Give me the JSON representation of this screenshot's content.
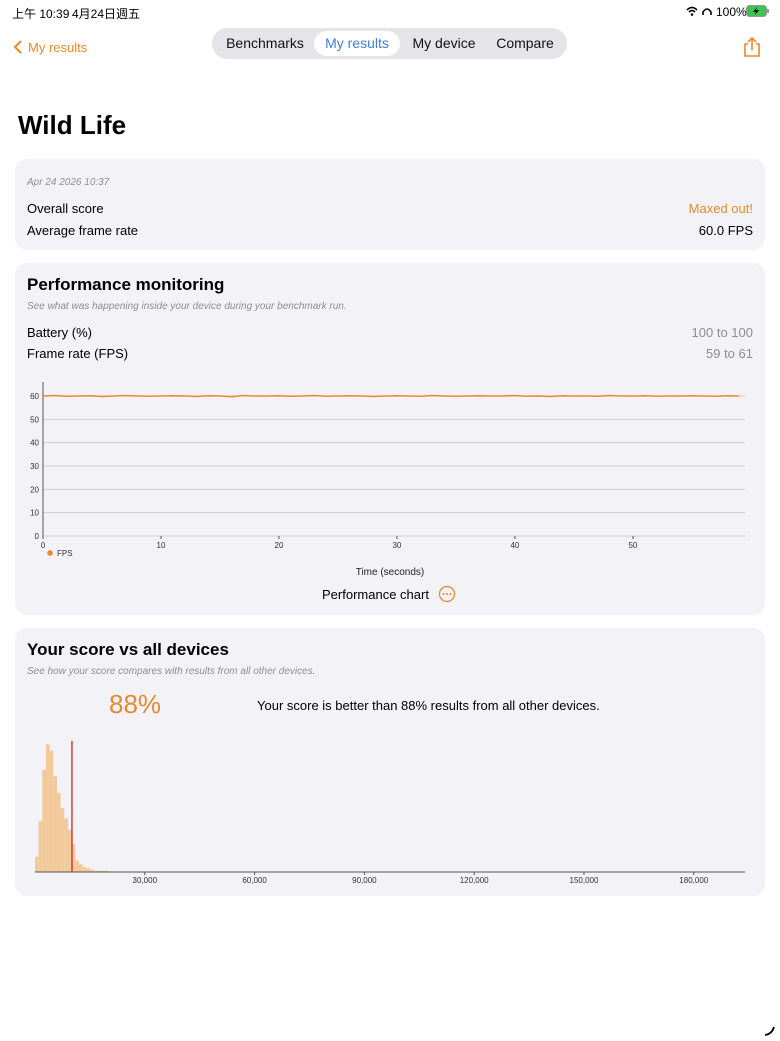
{
  "status_bar": {
    "time": "上午 10:39",
    "date": "4月24日週五",
    "battery": "100%"
  },
  "nav": {
    "back": "My results",
    "tabs": [
      "Benchmarks",
      "My results",
      "My device",
      "Compare"
    ],
    "active_tab": 1
  },
  "title": "Wild Life",
  "summary": {
    "date": "Apr 24 2026 10:37",
    "rows": [
      [
        "Overall score",
        "Maxed out!"
      ],
      [
        "Average frame rate",
        "60.0 FPS"
      ]
    ]
  },
  "performance": {
    "title": "Performance monitoring",
    "subtitle": "See what was happening inside your device during your benchmark run.",
    "rows": [
      [
        "Battery (%)",
        "100 to 100"
      ],
      [
        "Frame rate (FPS)",
        "59 to 61"
      ]
    ],
    "chart": {
      "type": "line",
      "x_label": "Time (seconds)",
      "x": [
        0,
        1,
        2,
        3,
        4,
        5,
        6,
        7,
        8,
        9,
        10,
        11,
        12,
        13,
        14,
        15,
        16,
        17,
        18,
        19,
        20,
        21,
        22,
        23,
        24,
        25,
        26,
        27,
        28,
        29,
        30,
        31,
        32,
        33,
        34,
        35,
        36,
        37,
        38,
        39,
        40,
        41,
        42,
        43,
        44,
        45,
        46,
        47,
        48,
        49,
        50,
        51,
        52,
        53,
        54,
        55,
        56,
        57,
        58,
        59
      ],
      "series": [
        {
          "name": "FPS",
          "color": "#e8892b",
          "values": [
            60,
            60.2,
            59.9,
            60,
            60.1,
            59.8,
            60,
            60.2,
            60,
            59.9,
            60,
            60.1,
            60,
            59.8,
            60.1,
            60,
            59.7,
            60.2,
            60,
            60,
            60.1,
            59.9,
            60,
            60.2,
            59.9,
            60,
            60.1,
            60,
            59.8,
            60,
            60.1,
            60,
            59.9,
            60.2,
            60,
            59.9,
            60,
            60.1,
            60,
            60,
            60.2,
            59.9,
            60,
            59.8,
            60.1,
            60,
            60,
            59.9,
            60.2,
            60,
            60,
            60.1,
            59.9,
            60,
            60,
            60.1,
            60,
            59.9,
            60.1,
            60
          ]
        }
      ],
      "xlim": [
        0,
        59.5
      ],
      "xticks": [
        0,
        10,
        20,
        30,
        40,
        50
      ],
      "ylim": [
        0,
        66
      ],
      "yticks": [
        0,
        10,
        20,
        30,
        40,
        50,
        60
      ],
      "grid": true
    },
    "footer": "Performance chart"
  },
  "comparison": {
    "title": "Your score vs all devices",
    "subtitle": "See how your score compares with results from all other devices.",
    "percent": "88%",
    "text": "Your score is better than 88% results from all other devices.",
    "chart": {
      "type": "histogram",
      "color": "#f2c999",
      "marker_color": "#e0393b",
      "bins": [
        0,
        1000,
        2000,
        3000,
        4000,
        5000,
        6000,
        7000,
        8000,
        9000,
        10000,
        11000,
        12000,
        13000,
        14000,
        15000,
        16000,
        17000,
        18000,
        19000,
        20000
      ],
      "counts": [
        12,
        40,
        80,
        100,
        95,
        75,
        62,
        50,
        42,
        33,
        22,
        9,
        6,
        4,
        3,
        2,
        1,
        1,
        1,
        1
      ],
      "score_marker": 10100,
      "xlim": [
        0,
        194000
      ],
      "ylim": [
        0,
        105
      ],
      "xticks": [
        {
          "value": 30000,
          "label": "30,000"
        },
        {
          "value": 60000,
          "label": "60,000"
        },
        {
          "value": 90000,
          "label": "90,000"
        },
        {
          "value": 120000,
          "label": "120,000"
        },
        {
          "value": 150000,
          "label": "150,000"
        },
        {
          "value": 180000,
          "label": "180,000"
        }
      ]
    }
  }
}
